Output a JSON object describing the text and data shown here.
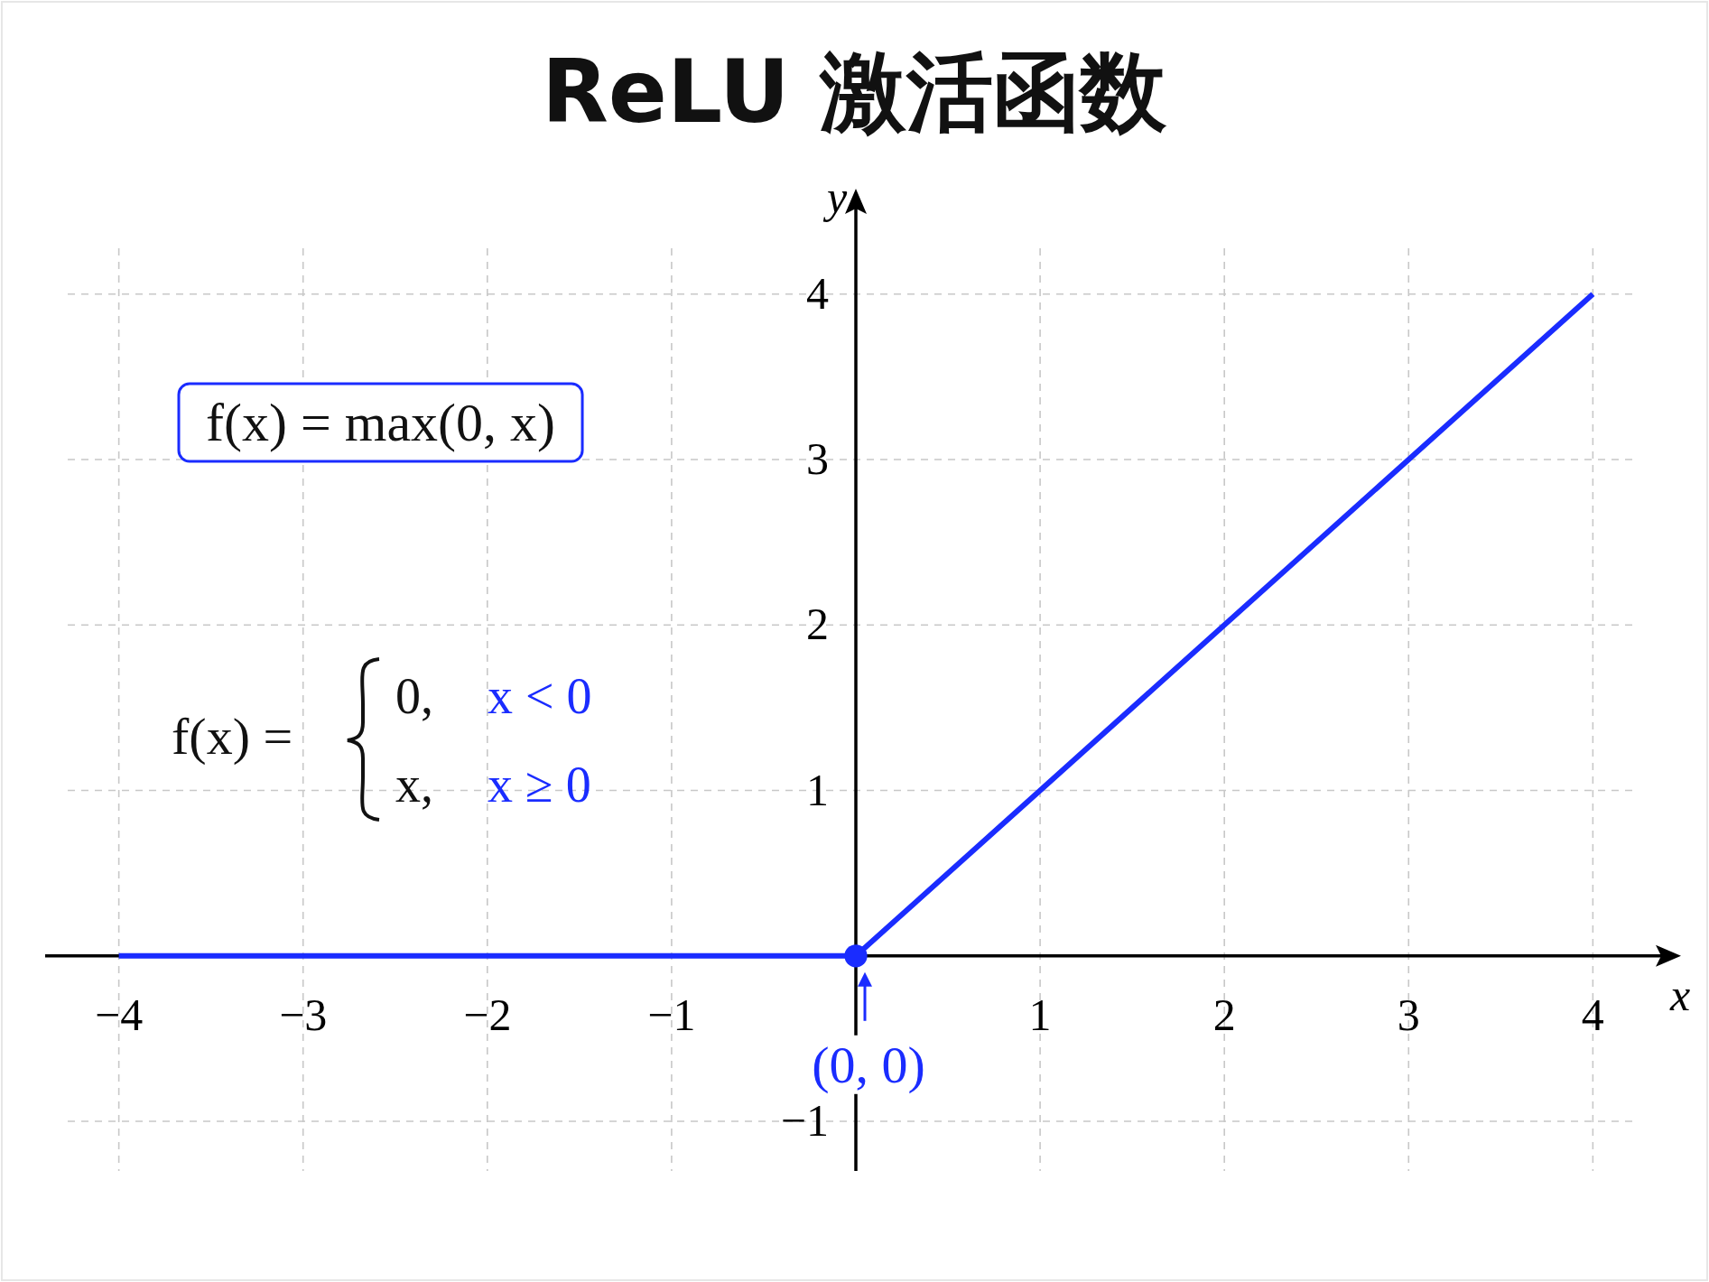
{
  "chart_data": {
    "type": "line",
    "title": "ReLU 激活函数",
    "xlabel": "x",
    "ylabel": "y",
    "xlim": [
      -4.4,
      4.4
    ],
    "ylim": [
      -1.3,
      4.55
    ],
    "xticks": [
      {
        "value": -4,
        "label": "−4"
      },
      {
        "value": -3,
        "label": "−3"
      },
      {
        "value": -2,
        "label": "−2"
      },
      {
        "value": -1,
        "label": "−1"
      },
      1,
      2,
      3,
      4
    ],
    "yticks": [
      {
        "value": -1,
        "label": "−1"
      },
      1,
      2,
      3,
      4
    ],
    "grid": true,
    "series": [
      {
        "type": "line",
        "color": "#1a2cff",
        "x": [
          -4,
          0,
          4
        ],
        "values": [
          0,
          0,
          4
        ],
        "line_style": "solid",
        "marker": "none"
      },
      {
        "type": "scatter",
        "color": "#1a2cff",
        "x": [
          0
        ],
        "values": [
          0
        ],
        "marker": "circle"
      }
    ],
    "annotations": [
      "f(x) = max(0, x)",
      "f(x) =",
      "0,",
      "x < 0",
      "x,",
      "x ≥ 0",
      {
        "text": "(0, 0)",
        "x": 0,
        "y": 0
      }
    ]
  }
}
